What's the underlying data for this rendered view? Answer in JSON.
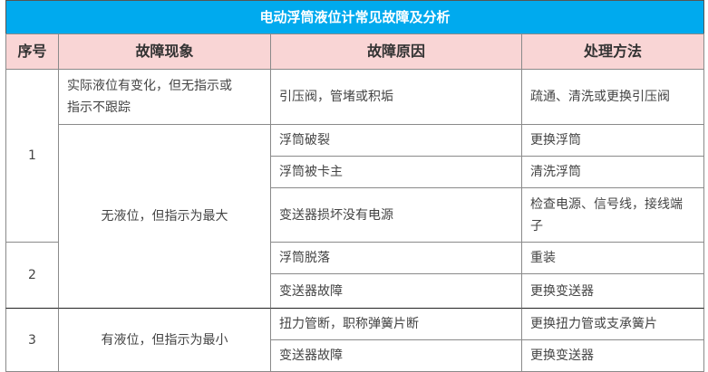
{
  "title": "电动浮筒液位计常见故障及分析",
  "headers": [
    "序号",
    "故障现象",
    "故障原因",
    "处理方法"
  ],
  "groups": [
    {
      "number": "1"
    },
    {
      "number": "2"
    },
    {
      "number": "3"
    }
  ],
  "symptoms": [
    "实际液位有变化，但无指示或指示不跟踪",
    "无液位，但指示为最大",
    "有液位，但指示为最小"
  ],
  "rows": [
    {
      "cause": "引压阀，管堵或积垢",
      "fix": "疏通、清洗或更换引压阀"
    },
    {
      "cause": "浮筒破裂",
      "fix": "更换浮筒"
    },
    {
      "cause": "浮筒被卡主",
      "fix": "清洗浮筒"
    },
    {
      "cause": "变送器损坏没有电源",
      "fix": "检查电源、信号线，接线端子"
    },
    {
      "cause": "浮筒脱落",
      "fix": "重装"
    },
    {
      "cause": "变送器故障",
      "fix": "更换变送器"
    },
    {
      "cause": "扭力管断，职称弹簧片断",
      "fix": "更换扭力管或支承簧片"
    },
    {
      "cause": "变送器故障",
      "fix": "更换变送器"
    }
  ]
}
